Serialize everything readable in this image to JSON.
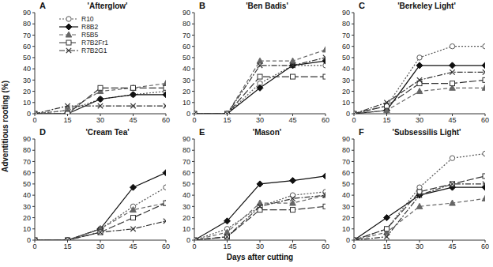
{
  "chart_data": [
    {
      "type": "line",
      "title": "A",
      "subtitle": "'Afterglow'",
      "y_label": "Adventitious rooting (%)",
      "legend": "upper center",
      "x": [
        0,
        15,
        30,
        45,
        60
      ],
      "xlim": [
        0,
        60
      ],
      "xticks": [
        0,
        15,
        30,
        45,
        60
      ],
      "ylim": [
        0,
        90
      ],
      "yticks": [
        0,
        10,
        20,
        30,
        40,
        50,
        60,
        70,
        80,
        90
      ],
      "grid": false,
      "series": [
        {
          "name": "R10",
          "color": "#555555",
          "marker": "circle",
          "line_style": "dotted",
          "values": [
            0,
            3,
            13,
            17,
            20
          ]
        },
        {
          "name": "R8B2",
          "color": "#111111",
          "marker": "diamond",
          "line_style": "solid",
          "values": [
            0,
            0,
            13,
            17,
            17
          ]
        },
        {
          "name": "R5B5",
          "color": "#666666",
          "marker": "triangle",
          "line_style": "dashed",
          "values": [
            0,
            3,
            20,
            23,
            27
          ]
        },
        {
          "name": "R7B2Fr1",
          "color": "#333333",
          "marker": "square",
          "line_style": "longdash",
          "values": [
            0,
            0,
            23,
            23,
            23
          ]
        },
        {
          "name": "R7B2G1",
          "color": "#333333",
          "marker": "x",
          "line_style": "dashdot",
          "values": [
            0,
            7,
            7,
            7,
            7
          ]
        }
      ]
    },
    {
      "type": "line",
      "title": "B",
      "subtitle": "'Ben Badis'",
      "x": [
        0,
        15,
        30,
        45,
        60
      ],
      "xlim": [
        0,
        60
      ],
      "xticks": [
        0,
        15,
        30,
        45,
        60
      ],
      "ylim": [
        0,
        90
      ],
      "yticks": [
        0,
        10,
        20,
        30,
        40,
        50,
        60,
        70,
        80,
        90
      ],
      "grid": false,
      "series": [
        {
          "name": "R10",
          "color": "#555555",
          "marker": "circle",
          "line_style": "dotted",
          "values": [
            0,
            0,
            27,
            43,
            43
          ]
        },
        {
          "name": "R8B2",
          "color": "#111111",
          "marker": "diamond",
          "line_style": "solid",
          "values": [
            0,
            0,
            23,
            43,
            47
          ]
        },
        {
          "name": "R5B5",
          "color": "#666666",
          "marker": "triangle",
          "line_style": "dashed",
          "values": [
            0,
            0,
            47,
            47,
            57
          ]
        },
        {
          "name": "R7B2Fr1",
          "color": "#333333",
          "marker": "square",
          "line_style": "longdash",
          "values": [
            0,
            0,
            33,
            33,
            33
          ]
        },
        {
          "name": "R7B2G1",
          "color": "#333333",
          "marker": "x",
          "line_style": "dashdot",
          "values": [
            0,
            0,
            43,
            43,
            50
          ]
        }
      ]
    },
    {
      "type": "line",
      "title": "C",
      "subtitle": "'Berkeley Light'",
      "x": [
        0,
        15,
        30,
        45,
        60
      ],
      "xlim": [
        0,
        60
      ],
      "xticks": [
        0,
        15,
        30,
        45,
        60
      ],
      "ylim": [
        0,
        90
      ],
      "yticks": [
        0,
        10,
        20,
        30,
        40,
        50,
        60,
        70,
        80,
        90
      ],
      "grid": false,
      "series": [
        {
          "name": "R10",
          "color": "#555555",
          "marker": "circle",
          "line_style": "dotted",
          "values": [
            0,
            7,
            50,
            60,
            60
          ]
        },
        {
          "name": "R8B2",
          "color": "#111111",
          "marker": "diamond",
          "line_style": "solid",
          "values": [
            0,
            3,
            43,
            43,
            43
          ]
        },
        {
          "name": "R5B5",
          "color": "#666666",
          "marker": "triangle",
          "line_style": "dashed",
          "values": [
            0,
            3,
            20,
            23,
            23
          ]
        },
        {
          "name": "R7B2Fr1",
          "color": "#333333",
          "marker": "square",
          "line_style": "longdash",
          "values": [
            0,
            7,
            27,
            27,
            30
          ]
        },
        {
          "name": "R7B2G1",
          "color": "#333333",
          "marker": "x",
          "line_style": "dashdot",
          "values": [
            0,
            10,
            30,
            37,
            37
          ]
        }
      ]
    },
    {
      "type": "line",
      "title": "D",
      "subtitle": "'Cream Tea'",
      "x": [
        0,
        15,
        30,
        45,
        60
      ],
      "xlim": [
        0,
        60
      ],
      "xticks": [
        0,
        15,
        30,
        45,
        60
      ],
      "ylim": [
        0,
        90
      ],
      "yticks": [
        0,
        10,
        20,
        30,
        40,
        50,
        60,
        70,
        80,
        90
      ],
      "grid": false,
      "series": [
        {
          "name": "R10",
          "color": "#555555",
          "marker": "circle",
          "line_style": "dotted",
          "values": [
            0,
            0,
            10,
            30,
            47
          ]
        },
        {
          "name": "R8B2",
          "color": "#111111",
          "marker": "diamond",
          "line_style": "solid",
          "values": [
            0,
            0,
            10,
            47,
            60
          ]
        },
        {
          "name": "R5B5",
          "color": "#666666",
          "marker": "triangle",
          "line_style": "dashed",
          "values": [
            0,
            0,
            10,
            27,
            33
          ]
        },
        {
          "name": "R7B2Fr1",
          "color": "#333333",
          "marker": "square",
          "line_style": "longdash",
          "values": [
            0,
            0,
            7,
            20,
            33
          ]
        },
        {
          "name": "R7B2G1",
          "color": "#333333",
          "marker": "x",
          "line_style": "dashdot",
          "values": [
            0,
            0,
            7,
            10,
            17
          ]
        }
      ]
    },
    {
      "type": "line",
      "title": "E",
      "subtitle": "'Mason'",
      "x_label": "Days after cutting",
      "x": [
        0,
        15,
        30,
        45,
        60
      ],
      "xlim": [
        0,
        60
      ],
      "xticks": [
        0,
        15,
        30,
        45,
        60
      ],
      "ylim": [
        0,
        90
      ],
      "yticks": [
        0,
        10,
        20,
        30,
        40,
        50,
        60,
        70,
        80,
        90
      ],
      "grid": false,
      "series": [
        {
          "name": "R10",
          "color": "#555555",
          "marker": "circle",
          "line_style": "dotted",
          "values": [
            0,
            10,
            30,
            40,
            43
          ]
        },
        {
          "name": "R8B2",
          "color": "#111111",
          "marker": "diamond",
          "line_style": "solid",
          "values": [
            0,
            17,
            50,
            53,
            57
          ]
        },
        {
          "name": "R5B5",
          "color": "#666666",
          "marker": "triangle",
          "line_style": "dashed",
          "values": [
            0,
            7,
            33,
            33,
            40
          ]
        },
        {
          "name": "R7B2Fr1",
          "color": "#333333",
          "marker": "square",
          "line_style": "longdash",
          "values": [
            0,
            3,
            27,
            27,
            30
          ]
        },
        {
          "name": "R7B2G1",
          "color": "#333333",
          "marker": "x",
          "line_style": "dashdot",
          "values": [
            0,
            3,
            30,
            37,
            40
          ]
        }
      ]
    },
    {
      "type": "line",
      "title": "F",
      "subtitle": "'Subsessilis Light'",
      "x": [
        0,
        15,
        30,
        45,
        60
      ],
      "xlim": [
        0,
        60
      ],
      "xticks": [
        0,
        15,
        30,
        45,
        60
      ],
      "ylim": [
        0,
        90
      ],
      "yticks": [
        0,
        10,
        20,
        30,
        40,
        50,
        60,
        70,
        80,
        90
      ],
      "grid": false,
      "series": [
        {
          "name": "R10",
          "color": "#555555",
          "marker": "circle",
          "line_style": "dotted",
          "values": [
            0,
            10,
            47,
            73,
            77
          ]
        },
        {
          "name": "R8B2",
          "color": "#111111",
          "marker": "diamond",
          "line_style": "solid",
          "values": [
            0,
            20,
            40,
            47,
            47
          ]
        },
        {
          "name": "R5B5",
          "color": "#666666",
          "marker": "triangle",
          "line_style": "dashed",
          "values": [
            0,
            7,
            30,
            33,
            37
          ]
        },
        {
          "name": "R7B2Fr1",
          "color": "#333333",
          "marker": "square",
          "line_style": "longdash",
          "values": [
            0,
            10,
            43,
            50,
            57
          ]
        },
        {
          "name": "R7B2G1",
          "color": "#333333",
          "marker": "x",
          "line_style": "dashdot",
          "values": [
            0,
            3,
            40,
            50,
            50
          ]
        }
      ]
    }
  ]
}
